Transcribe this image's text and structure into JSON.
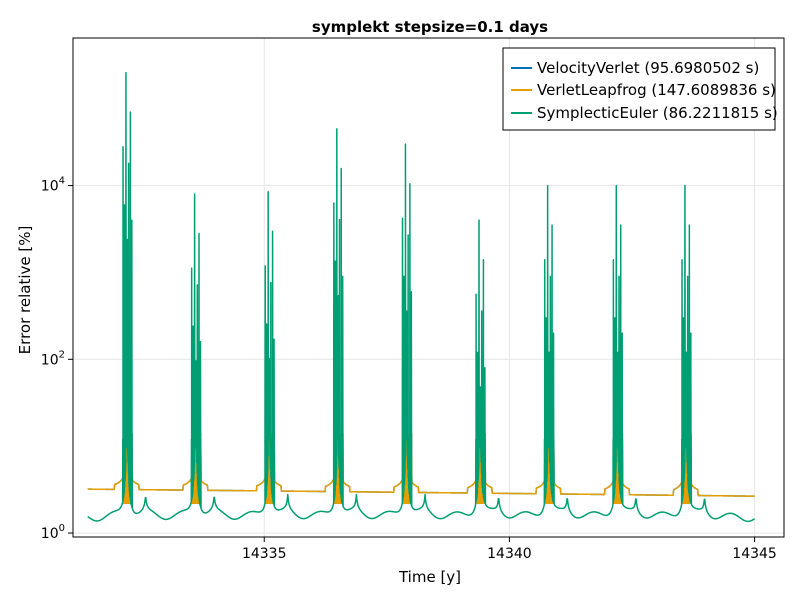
{
  "chart_data": {
    "type": "line",
    "title": "symplekt stepsize=0.1 days",
    "xlabel": "Time [y]",
    "ylabel": "Error relative [%]",
    "xlim": [
      14331.1,
      14345.6
    ],
    "ylim": [
      0.9,
      500000
    ],
    "yscale": "log",
    "grid": true,
    "legend_position": "top-right",
    "x_ticks": [
      14335,
      14340,
      14345
    ],
    "y_ticks": [
      {
        "value": 1,
        "base": "10",
        "exp": "0"
      },
      {
        "value": 100,
        "base": "10",
        "exp": "2"
      },
      {
        "value": 10000,
        "base": "10",
        "exp": "4"
      }
    ],
    "x_start": 14331.4,
    "x_end": 14345.0,
    "peak_times": [
      14332.2,
      14333.6,
      14335.1,
      14336.5,
      14337.9,
      14339.4,
      14340.8,
      14342.2,
      14343.6
    ],
    "peak_heights_symplectic_euler": [
      200000,
      8000,
      8500,
      45000,
      30000,
      4000,
      10000,
      10000,
      10000
    ],
    "series": [
      {
        "name": "VelocityVerlet (95.6980502 s)",
        "color": "#0072b2",
        "baseline": 3.2
      },
      {
        "name": "VerletLeapfrog (147.6089836 s)",
        "color": "#e69f00",
        "baseline": 3.2
      },
      {
        "name": "SymplecticEuler (86.2211815 s)",
        "color": "#009e73",
        "baseline": 1.8
      }
    ]
  }
}
